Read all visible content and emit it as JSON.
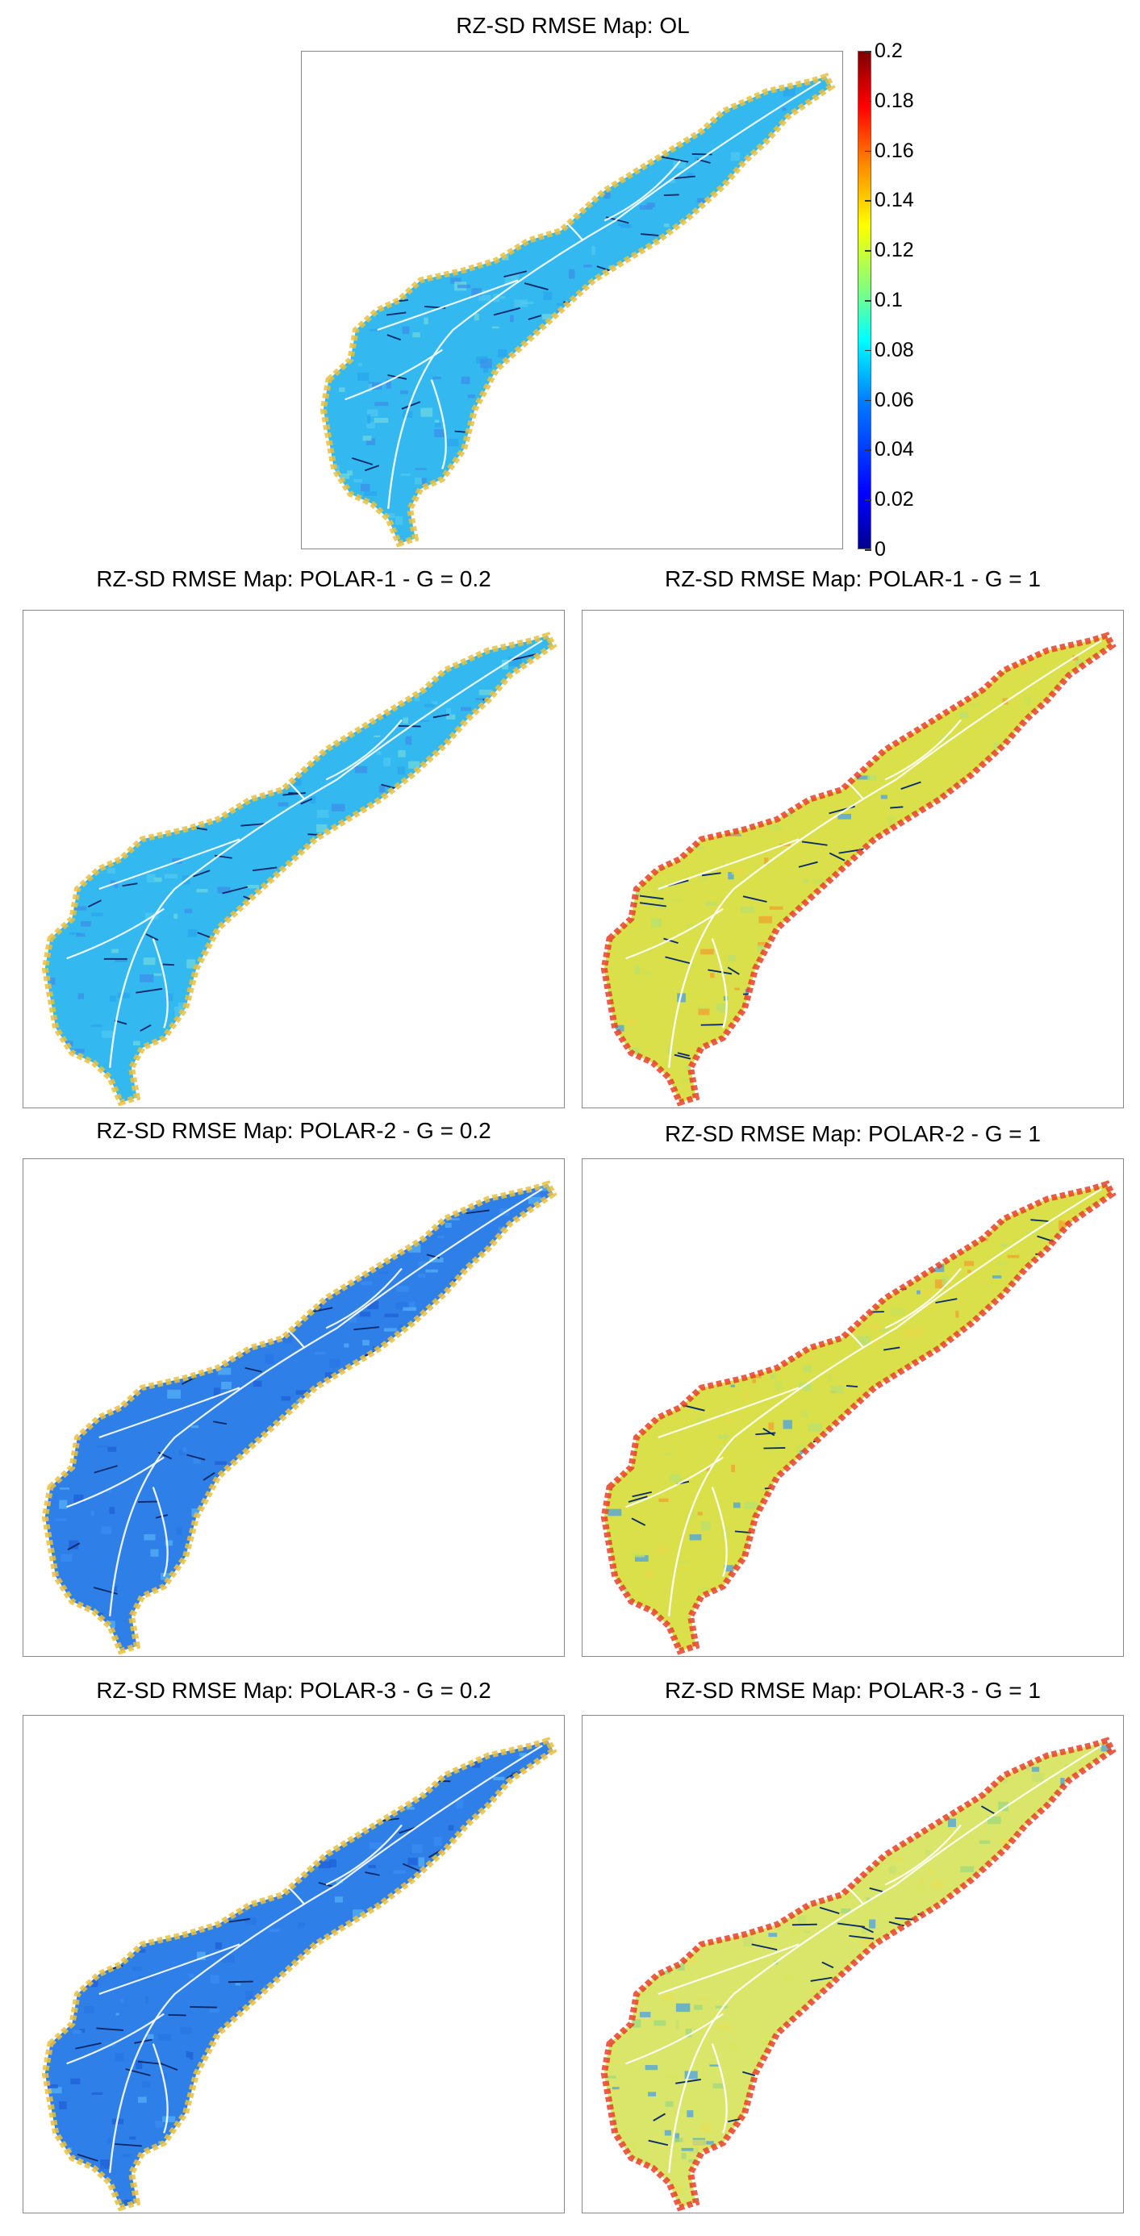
{
  "chart_data": [
    {
      "type": "heatmap",
      "title": "RZ-SD RMSE Map: OL",
      "dominant": "mid"
    },
    {
      "type": "heatmap",
      "title": "RZ-SD RMSE Map: POLAR-1 - G = 0.2",
      "dominant": "mid"
    },
    {
      "type": "heatmap",
      "title": "RZ-SD RMSE Map: POLAR-1 - G = 1",
      "dominant": "high"
    },
    {
      "type": "heatmap",
      "title": "RZ-SD RMSE Map: POLAR-2 - G = 0.2",
      "dominant": "low"
    },
    {
      "type": "heatmap",
      "title": "RZ-SD RMSE Map: POLAR-2 - G = 1",
      "dominant": "high"
    },
    {
      "type": "heatmap",
      "title": "RZ-SD RMSE Map: POLAR-3 - G = 0.2",
      "dominant": "low"
    },
    {
      "type": "heatmap",
      "title": "RZ-SD RMSE Map: POLAR-3 - G = 1",
      "dominant": "yellow"
    }
  ],
  "colorbar": {
    "ticks": [
      "0.2",
      "0.18",
      "0.16",
      "0.14",
      "0.12",
      "0.1",
      "0.08",
      "0.06",
      "0.04",
      "0.02",
      "0"
    ],
    "range": [
      0,
      0.2
    ],
    "colormap": "jet"
  },
  "colors": {
    "low": "#2f7fe8",
    "mid": "#33b8f0",
    "high": "#d9e04a",
    "yellow": "#d9e66a",
    "edge_hot": "#e8402a",
    "river": "#ffffff",
    "channel": "#0b2a6b"
  }
}
